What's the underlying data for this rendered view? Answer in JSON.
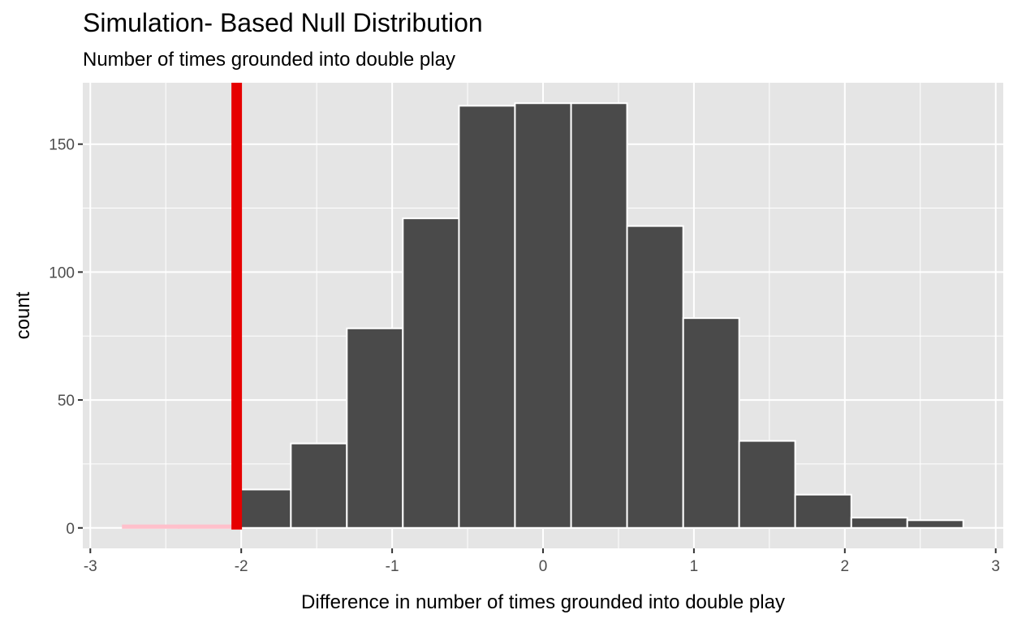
{
  "chart_data": {
    "type": "bar",
    "title": "Simulation- Based Null Distribution",
    "subtitle": "Number of times grounded into double play",
    "xlabel": "Difference in number of times grounded into double play",
    "ylabel": "count",
    "xlim": [
      -3.05,
      3.05
    ],
    "ylim": [
      -8,
      174
    ],
    "x_ticks": [
      -3,
      -2,
      -1,
      0,
      1,
      2,
      3
    ],
    "x_tick_labels": [
      "-3",
      "-2",
      "-1",
      "0",
      "1",
      "2",
      "3"
    ],
    "y_ticks": [
      0,
      50,
      100,
      150
    ],
    "y_tick_labels": [
      "0",
      "50",
      "100",
      "150"
    ],
    "grid": true,
    "bin_width": 0.3714,
    "bins": [
      {
        "x0": -2.785,
        "x1": -2.414,
        "value": 1,
        "shaded": true
      },
      {
        "x0": -2.414,
        "x1": -2.043,
        "value": 1,
        "shaded": true
      },
      {
        "x0": -2.043,
        "x1": -1.671,
        "value": 15,
        "shaded": false
      },
      {
        "x0": -1.671,
        "x1": -1.3,
        "value": 33,
        "shaded": false
      },
      {
        "x0": -1.3,
        "x1": -0.929,
        "value": 78,
        "shaded": false
      },
      {
        "x0": -0.929,
        "x1": -0.557,
        "value": 121,
        "shaded": false
      },
      {
        "x0": -0.557,
        "x1": -0.186,
        "value": 165,
        "shaded": false
      },
      {
        "x0": -0.186,
        "x1": 0.186,
        "value": 166,
        "shaded": false
      },
      {
        "x0": 0.186,
        "x1": 0.557,
        "value": 166,
        "shaded": false
      },
      {
        "x0": 0.557,
        "x1": 0.929,
        "value": 118,
        "shaded": false
      },
      {
        "x0": 0.929,
        "x1": 1.3,
        "value": 82,
        "shaded": false
      },
      {
        "x0": 1.3,
        "x1": 1.671,
        "value": 34,
        "shaded": false
      },
      {
        "x0": 1.671,
        "x1": 2.043,
        "value": 13,
        "shaded": false
      },
      {
        "x0": 2.043,
        "x1": 2.414,
        "value": 4,
        "shaded": false
      },
      {
        "x0": 2.414,
        "x1": 2.785,
        "value": 3,
        "shaded": false
      }
    ],
    "observed_statistic": -2.03,
    "colors": {
      "panel": "#e5e5e5",
      "grid": "#ffffff",
      "bar_fill": "#4a4a4a",
      "bar_outline": "#ffffff",
      "shade_fill": "#ffc0cb",
      "observed_line": "#e60000",
      "tick": "#333333"
    }
  }
}
